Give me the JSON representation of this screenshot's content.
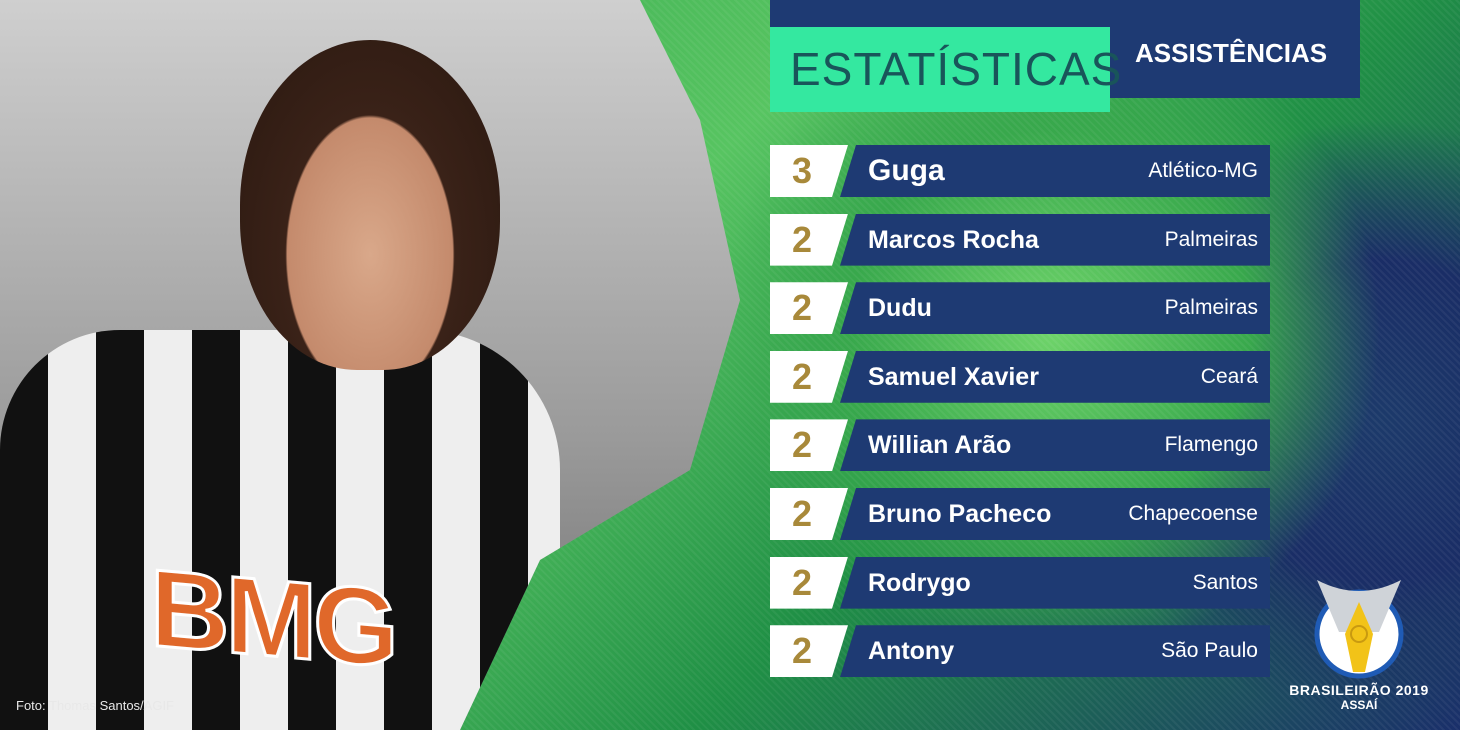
{
  "header": {
    "title": "ESTATÍSTICAS",
    "subtitle": "ASSISTÊNCIAS"
  },
  "rows": [
    {
      "value": "3",
      "name": "Guga",
      "team": "Atlético-MG"
    },
    {
      "value": "2",
      "name": "Marcos Rocha",
      "team": "Palmeiras"
    },
    {
      "value": "2",
      "name": "Dudu",
      "team": "Palmeiras"
    },
    {
      "value": "2",
      "name": "Samuel Xavier",
      "team": "Ceará"
    },
    {
      "value": "2",
      "name": "Willian Arão",
      "team": "Flamengo"
    },
    {
      "value": "2",
      "name": "Bruno Pacheco",
      "team": "Chapecoense"
    },
    {
      "value": "2",
      "name": "Rodrygo",
      "team": "Santos"
    },
    {
      "value": "2",
      "name": "Antony",
      "team": "São Paulo"
    }
  ],
  "photo_credit": "Foto: Thomas Santos/AGIF",
  "photo_sponsor": "BMG",
  "logo": {
    "line1": "BRASILEIRÃO 2019",
    "line2": "ASSAÍ"
  },
  "colors": {
    "navy": "#1e3a73",
    "accent": "#34e8a0",
    "gold": "#a8893a"
  }
}
